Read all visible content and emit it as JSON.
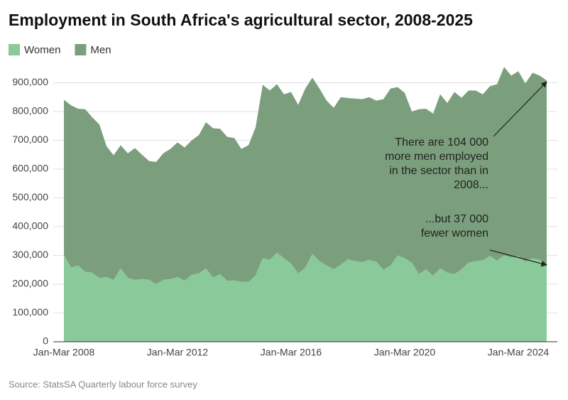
{
  "chart_data": {
    "type": "stacked_area",
    "title": "Employment in South Africa's agricultural sector, 2008-2025",
    "source": "Source: StatsSA Quarterly labour force survey",
    "categories": [
      "Jan-Mar 2008",
      null,
      null,
      null,
      null,
      null,
      null,
      null,
      null,
      null,
      null,
      null,
      null,
      null,
      null,
      null,
      "Jan-Mar 2012",
      null,
      null,
      null,
      null,
      null,
      null,
      null,
      null,
      null,
      null,
      null,
      null,
      null,
      null,
      null,
      "Jan-Mar 2016",
      null,
      null,
      null,
      null,
      null,
      null,
      null,
      null,
      null,
      null,
      null,
      null,
      null,
      null,
      null,
      "Jan-Mar 2020",
      null,
      null,
      null,
      null,
      null,
      null,
      null,
      null,
      null,
      null,
      null,
      null,
      null,
      null,
      null,
      "Jan-Mar 2024",
      null,
      null,
      null,
      null
    ],
    "series": [
      {
        "name": "Women",
        "color": "#89c99a",
        "values": [
          302000,
          258000,
          265000,
          243000,
          240000,
          222000,
          225000,
          215000,
          255000,
          222000,
          215000,
          218000,
          215000,
          200000,
          215000,
          218000,
          225000,
          212000,
          233000,
          237000,
          255000,
          223000,
          235000,
          212000,
          213000,
          208000,
          208000,
          230000,
          290000,
          285000,
          310000,
          290000,
          272000,
          237000,
          258000,
          305000,
          280000,
          265000,
          252000,
          268000,
          287000,
          280000,
          277000,
          285000,
          278000,
          250000,
          265000,
          300000,
          290000,
          275000,
          235000,
          252000,
          230000,
          255000,
          240000,
          235000,
          252000,
          275000,
          280000,
          283000,
          298000,
          282000,
          300000,
          293000,
          298000,
          278000,
          290000,
          285000,
          265000
        ]
      },
      {
        "name": "Men",
        "color": "#7b9f7c",
        "values": [
          539000,
          564000,
          545000,
          565000,
          540000,
          533000,
          455000,
          433000,
          428000,
          433000,
          458000,
          432000,
          413000,
          425000,
          440000,
          452000,
          468000,
          463000,
          467000,
          481000,
          508000,
          519000,
          505000,
          500000,
          495000,
          462000,
          475000,
          515000,
          603000,
          588000,
          585000,
          570000,
          596000,
          586000,
          622000,
          613000,
          600000,
          573000,
          561000,
          582000,
          560000,
          565000,
          566000,
          565000,
          560000,
          593000,
          615000,
          585000,
          575000,
          525000,
          573000,
          558000,
          563000,
          605000,
          590000,
          633000,
          596000,
          598000,
          593000,
          577000,
          590000,
          613000,
          655000,
          632000,
          642000,
          620000,
          645000,
          640000,
          643000
        ]
      }
    ],
    "ylim": [
      0,
      1000000
    ],
    "yticks": [
      0,
      {
        "value": 100000,
        "label": "100,000"
      },
      {
        "value": 200000,
        "label": "200,000"
      },
      {
        "value": 300000,
        "label": "300,000"
      },
      {
        "value": 400000,
        "label": "400,000"
      },
      {
        "value": 500000,
        "label": "500,000"
      },
      {
        "value": 600000,
        "label": "600,000"
      },
      {
        "value": 700000,
        "label": "700,000"
      },
      {
        "value": 800000,
        "label": "800,000"
      },
      {
        "value": 900000,
        "label": "900,000"
      }
    ],
    "grid": true,
    "legend": "top-left",
    "annotations": [
      {
        "lines": [
          "There are 104 000",
          "more men employed",
          "in the sector than in",
          "2008..."
        ]
      },
      {
        "lines": [
          "...but 37 000",
          "fewer women"
        ]
      }
    ]
  }
}
